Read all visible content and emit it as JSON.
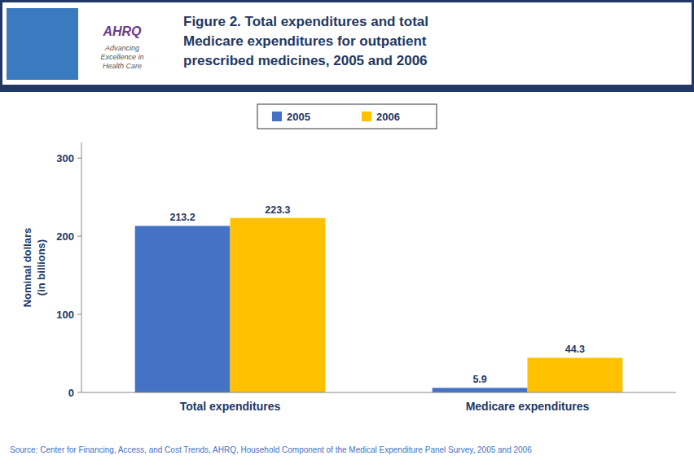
{
  "chart_data": {
    "type": "bar",
    "title": "Figure 2. Total expenditures and total\nMedicare expenditures for outpatient\nprescribed medicines, 2005 and 2006",
    "y_label": "Nominal dollars\n(in billions)",
    "categories": [
      "Total expenditures",
      "Medicare expenditures"
    ],
    "series": [
      {
        "name": "2005",
        "color": "#4472C4",
        "values": [
          213.2,
          5.9
        ]
      },
      {
        "name": "2006",
        "color": "#FFC000",
        "values": [
          223.3,
          44.3
        ]
      }
    ],
    "ylim": [
      0,
      320
    ],
    "yticks": [
      0,
      100,
      200,
      300
    ],
    "grid": false,
    "legend": "top",
    "data_labels": true,
    "annotations": [
      "AHRQ",
      "Advancing\nExcellence in\nHealth Care"
    ],
    "source": "Source: Center for Financing, Access, and Cost Trends, AHRQ, Household Component of the Medical Expenditure Panel Survey, 2005 and 2006"
  }
}
